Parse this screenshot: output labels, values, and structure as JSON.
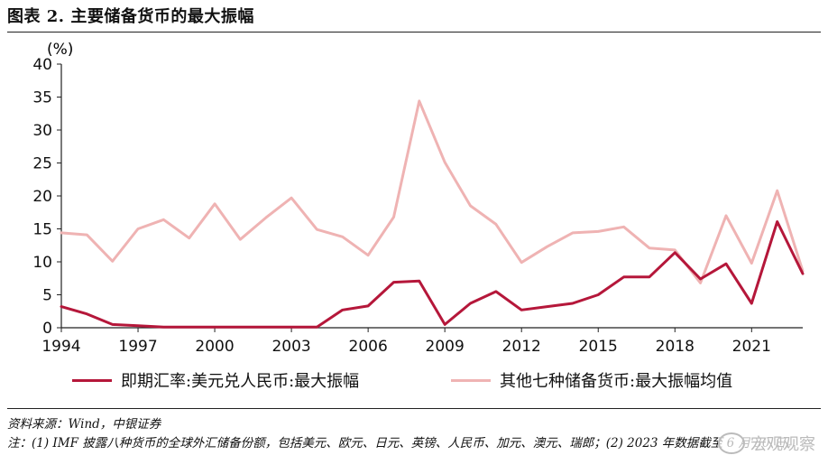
{
  "figure": {
    "title": "图表 2.  主要储备货币的最大振幅",
    "source": "资料来源：Wind，中银证券",
    "note": "注：(1) IMF 披露八种货币的全球外汇储备份额，包括美元、欧元、日元、英镑、人民币、加元、澳元、瑞郎；(2) 2023 年数据截至 6 月 30 日。",
    "watermark": "宏观观察"
  },
  "chart_data": {
    "type": "line",
    "y_unit_label": "(%)",
    "ylim": [
      0,
      40
    ],
    "y_ticks": [
      0,
      5,
      10,
      15,
      20,
      25,
      30,
      35,
      40
    ],
    "xlim": [
      1994,
      2023
    ],
    "x_ticks": [
      1994,
      1997,
      2000,
      2003,
      2006,
      2009,
      2012,
      2015,
      2018,
      2021
    ],
    "grid": false,
    "legend_position": "bottom",
    "x": [
      1994,
      1995,
      1996,
      1997,
      1998,
      1999,
      2000,
      2001,
      2002,
      2003,
      2004,
      2005,
      2006,
      2007,
      2008,
      2009,
      2010,
      2011,
      2012,
      2013,
      2014,
      2015,
      2016,
      2017,
      2018,
      2019,
      2020,
      2021,
      2022,
      2023
    ],
    "series": [
      {
        "name": "即期汇率:美元兑人民币:最大振幅",
        "color": "#b5173a",
        "values": [
          3.2,
          2.1,
          0.5,
          0.3,
          0.1,
          0.1,
          0.1,
          0.1,
          0.1,
          0.1,
          0.1,
          2.7,
          3.3,
          6.9,
          7.1,
          0.5,
          3.7,
          5.5,
          2.7,
          3.2,
          3.7,
          5.0,
          7.7,
          7.7,
          11.4,
          7.4,
          9.7,
          3.7,
          16.1,
          8.2
        ]
      },
      {
        "name": "其他七种储备货币:最大振幅均值",
        "color": "#efb3b3",
        "values": [
          14.4,
          14.1,
          10.1,
          15.0,
          16.4,
          13.6,
          18.8,
          13.4,
          16.7,
          19.7,
          14.9,
          13.8,
          11.0,
          16.8,
          34.4,
          25.1,
          18.5,
          15.7,
          9.9,
          12.3,
          14.4,
          14.6,
          15.3,
          12.1,
          11.8,
          6.8,
          17.0,
          9.8,
          20.8,
          8.6
        ]
      }
    ]
  }
}
